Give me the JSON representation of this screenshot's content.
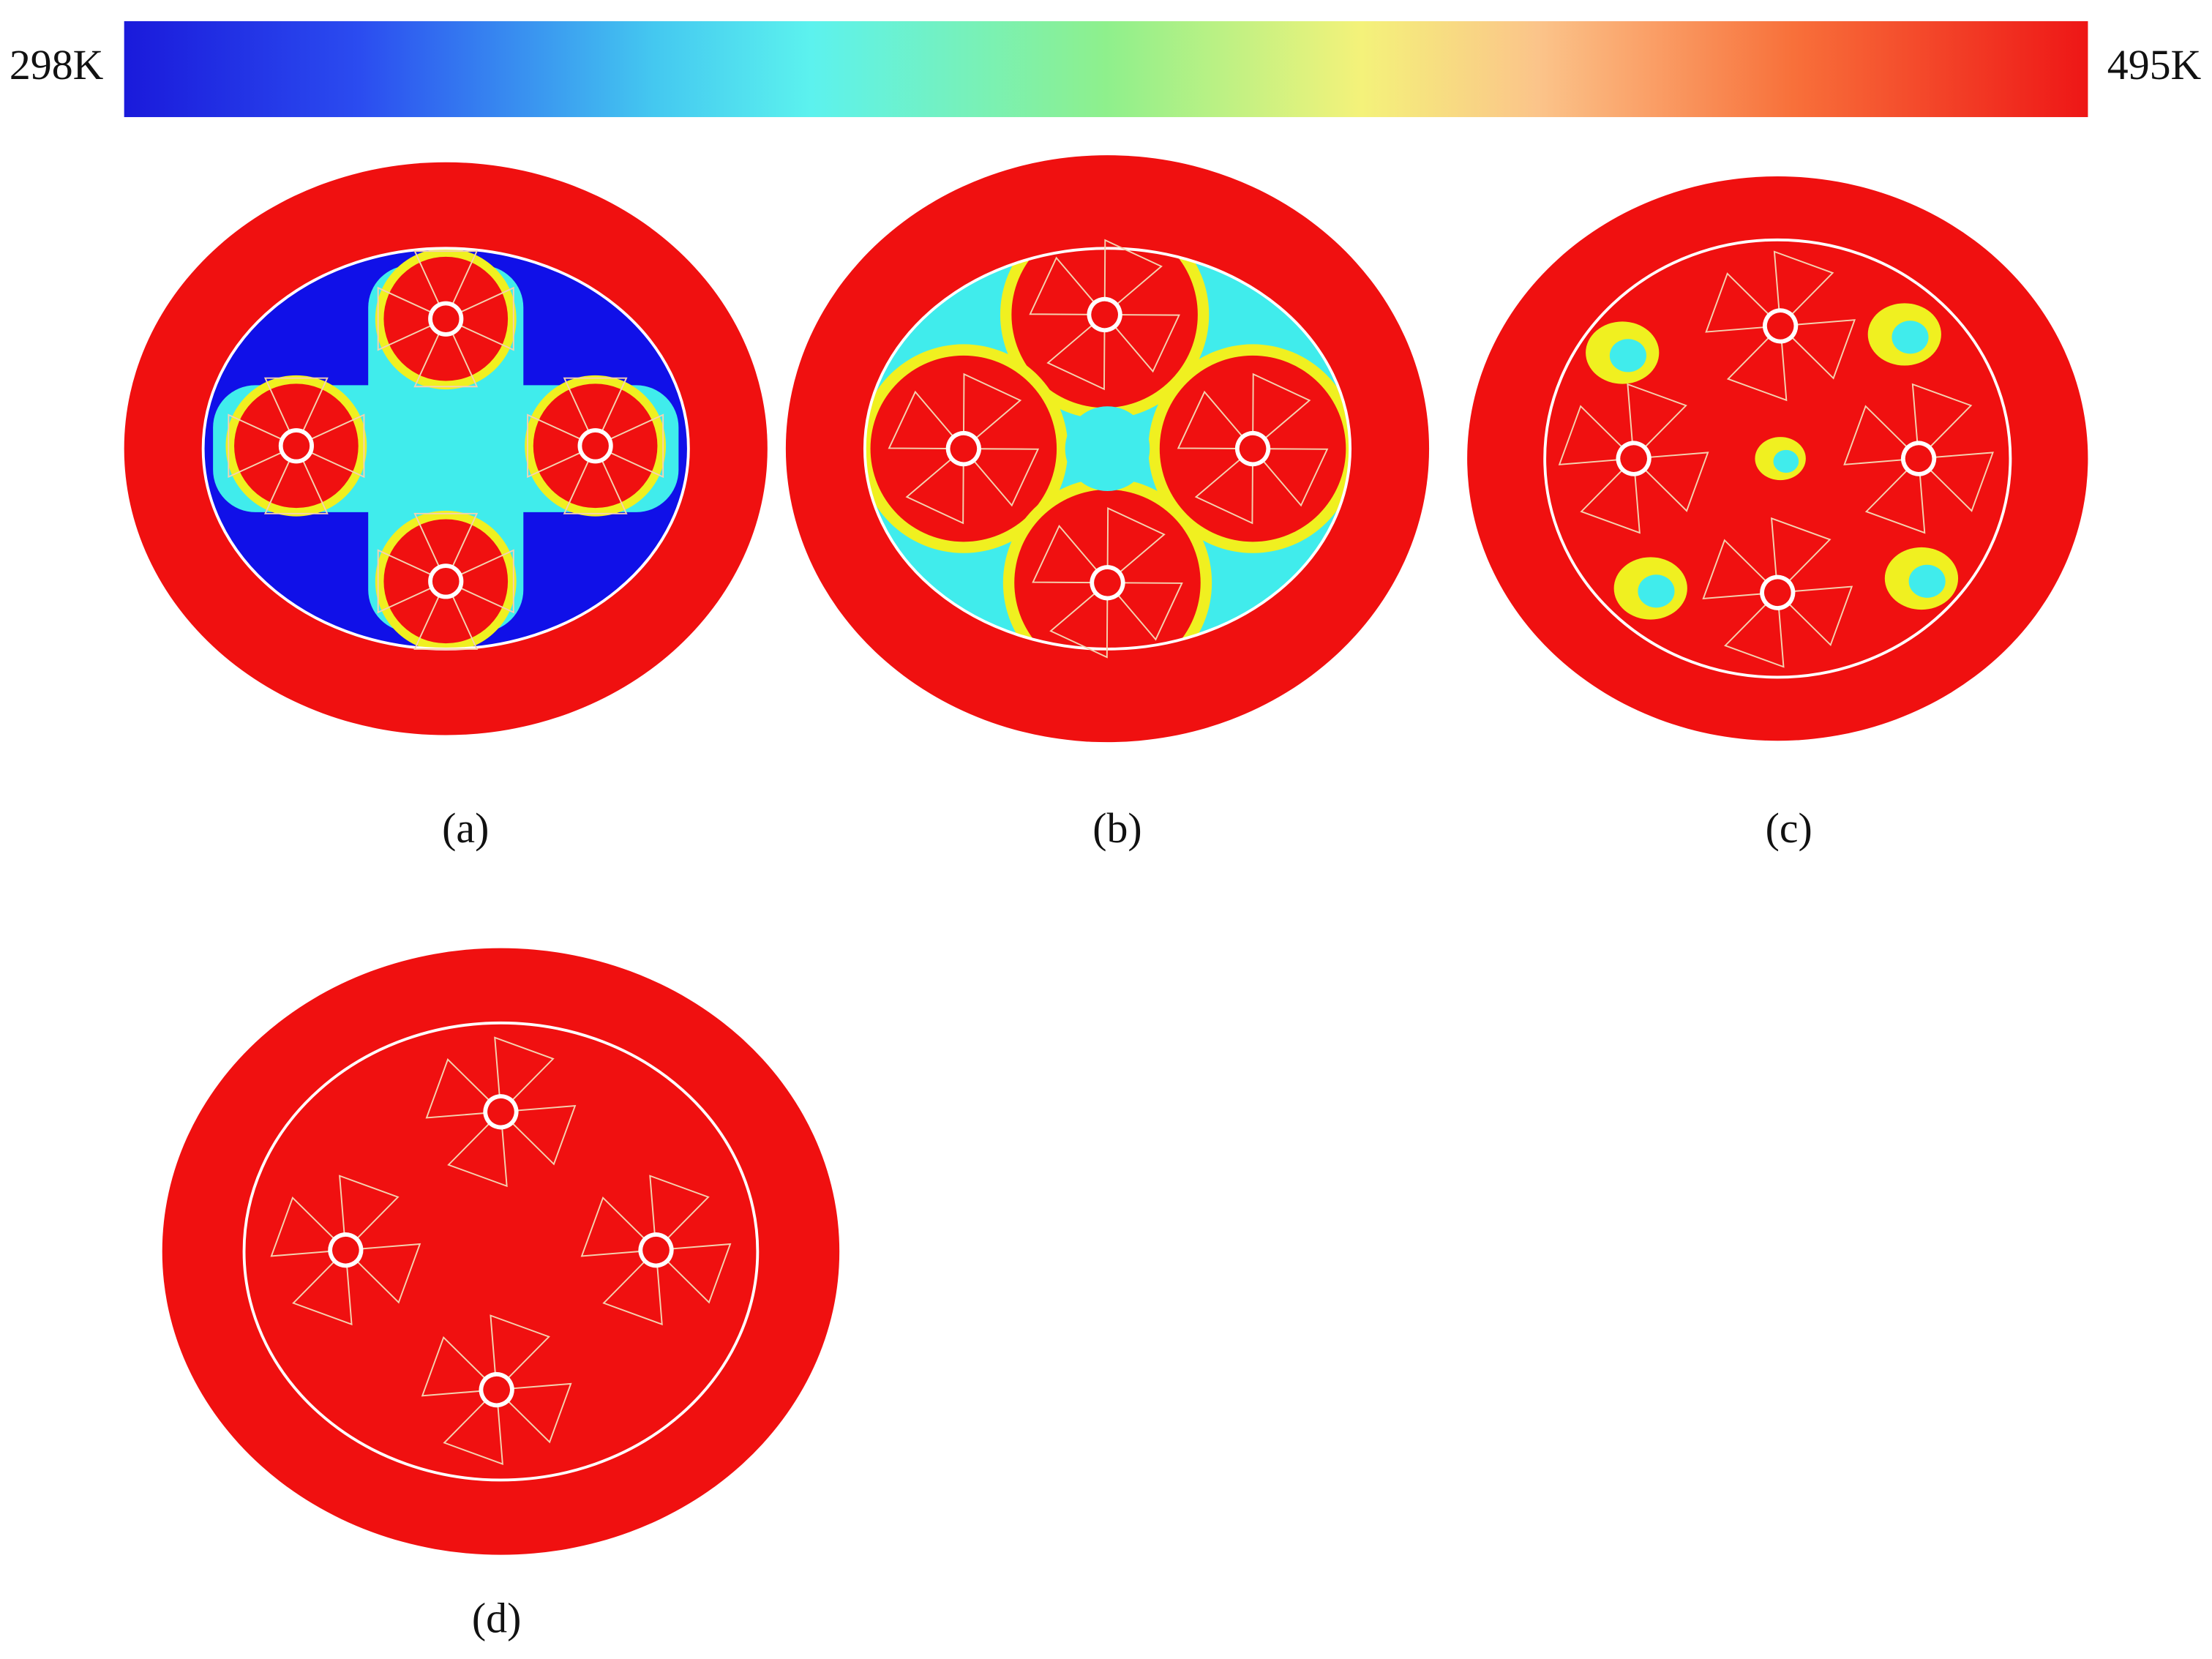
{
  "colorbar": {
    "min_label": "298K",
    "max_label": "495K"
  },
  "panels": [
    {
      "label": "(a)"
    },
    {
      "label": "(b)"
    },
    {
      "label": "(c)"
    },
    {
      "label": "(d)"
    }
  ]
}
